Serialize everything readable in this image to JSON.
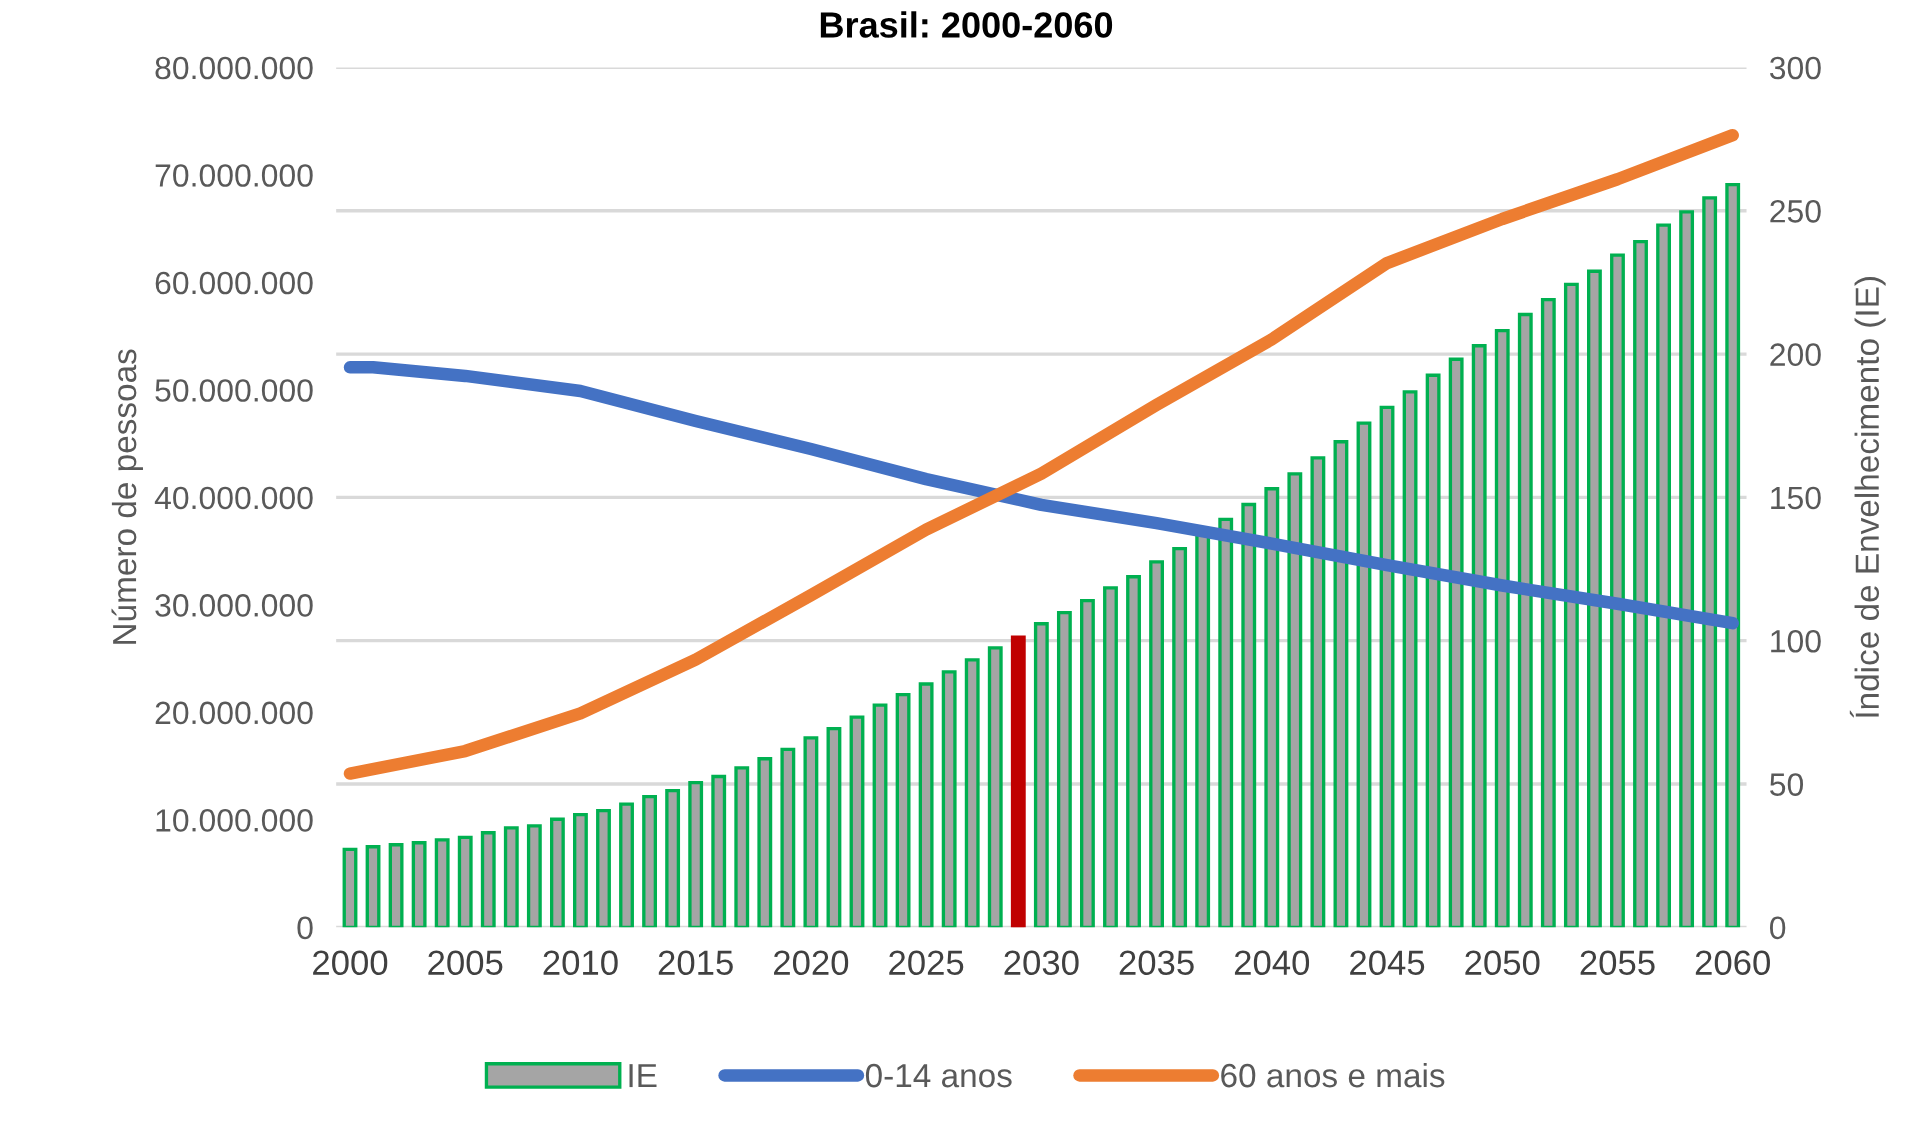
{
  "chart_data": {
    "type": "bar",
    "title": "Brasil: 2000-2060",
    "ylabel": "Número de pessoas",
    "y2label": "Índice de Envelhecimento (IE)",
    "x": [
      2000,
      2001,
      2002,
      2003,
      2004,
      2005,
      2006,
      2007,
      2008,
      2009,
      2010,
      2011,
      2012,
      2013,
      2014,
      2015,
      2016,
      2017,
      2018,
      2019,
      2020,
      2021,
      2022,
      2023,
      2024,
      2025,
      2026,
      2027,
      2028,
      2029,
      2030,
      2031,
      2032,
      2033,
      2034,
      2035,
      2036,
      2037,
      2038,
      2039,
      2040,
      2041,
      2042,
      2043,
      2044,
      2045,
      2046,
      2047,
      2048,
      2049,
      2050,
      2051,
      2052,
      2053,
      2054,
      2055,
      2056,
      2057,
      2058,
      2059,
      2060
    ],
    "xlim": [
      1999.4,
      2060.6
    ],
    "xticks": [
      2000,
      2005,
      2010,
      2015,
      2020,
      2025,
      2030,
      2035,
      2040,
      2045,
      2050,
      2055,
      2060
    ],
    "ylim": [
      0,
      80000000
    ],
    "yticks": [
      {
        "value": 0,
        "label": "0"
      },
      {
        "value": 10000000,
        "label": "10.000.000"
      },
      {
        "value": 20000000,
        "label": "20.000.000"
      },
      {
        "value": 30000000,
        "label": "30.000.000"
      },
      {
        "value": 40000000,
        "label": "40.000.000"
      },
      {
        "value": 50000000,
        "label": "50.000.000"
      },
      {
        "value": 60000000,
        "label": "60.000.000"
      },
      {
        "value": 70000000,
        "label": "70.000.000"
      },
      {
        "value": 80000000,
        "label": "80.000.000"
      }
    ],
    "y2lim": [
      0,
      300
    ],
    "y2ticks": [
      0,
      50,
      100,
      150,
      200,
      250,
      300
    ],
    "grid": "y",
    "legend": "bottom",
    "series": [
      {
        "name": "IE",
        "axis": "y2",
        "color": "#00b050",
        "colors": [
          "#00b050",
          "#00b050",
          "#00b050",
          "#00b050",
          "#00b050",
          "#00b050",
          "#00b050",
          "#00b050",
          "#00b050",
          "#00b050",
          "#00b050",
          "#00b050",
          "#00b050",
          "#00b050",
          "#00b050",
          "#00b050",
          "#00b050",
          "#00b050",
          "#00b050",
          "#00b050",
          "#00b050",
          "#00b050",
          "#00b050",
          "#00b050",
          "#00b050",
          "#00b050",
          "#00b050",
          "#00b050",
          "#00b050",
          "#c00000",
          "#00b050",
          "#00b050",
          "#00b050",
          "#00b050",
          "#00b050",
          "#00b050",
          "#00b050",
          "#00b050",
          "#00b050",
          "#00b050",
          "#00b050",
          "#00b050",
          "#00b050",
          "#00b050",
          "#00b050",
          "#00b050",
          "#00b050",
          "#00b050",
          "#00b050",
          "#00b050",
          "#00b050",
          "#00b050",
          "#00b050",
          "#00b050",
          "#00b050",
          "#00b050",
          "#00b050",
          "#00b050",
          "#00b050",
          "#00b050",
          "#00b050"
        ],
        "values": [
          27.2,
          28.1,
          28.8,
          29.5,
          30.5,
          31.4,
          33,
          34.7,
          35.4,
          37.7,
          39.3,
          40.7,
          43,
          45.6,
          47.7,
          50.5,
          52.6,
          55.6,
          58.8,
          62.1,
          66.1,
          69.3,
          73.3,
          77.5,
          81.2,
          84.9,
          89.1,
          93.3,
          97.5,
          101.2,
          105.9,
          109.8,
          114,
          118.4,
          122.3,
          127.5,
          132.1,
          137.2,
          142.3,
          147.5,
          153,
          158.2,
          163.8,
          169.4,
          175.9,
          181.4,
          186.8,
          192.6,
          198.2,
          202.9,
          208.2,
          213.8,
          219,
          224.3,
          228.9,
          234.5,
          239.2,
          245,
          249.6,
          254.5,
          259.1
        ]
      },
      {
        "name": "0-14 anos",
        "type": "line",
        "color": "#4472c4",
        "x": [
          2000,
          2001,
          2005,
          2010,
          2015,
          2020,
          2025,
          2030,
          2035,
          2040,
          2045,
          2050,
          2055,
          2060
        ],
        "values": [
          52100000,
          52100000,
          51300000,
          49900000,
          47100000,
          44500000,
          41700000,
          39300000,
          37600000,
          35700000,
          33700000,
          31800000,
          30100000,
          28300000
        ]
      },
      {
        "name": "60 anos e mais",
        "type": "line",
        "color": "#ed7d31",
        "x": [
          2000,
          2005,
          2010,
          2015,
          2020,
          2025,
          2030,
          2035,
          2040,
          2045,
          2050,
          2055,
          2060
        ],
        "values": [
          14300000,
          16400000,
          19900000,
          24900000,
          30900000,
          37000000,
          42200000,
          48600000,
          54700000,
          61800000,
          65900000,
          69600000,
          73700000
        ]
      }
    ]
  }
}
